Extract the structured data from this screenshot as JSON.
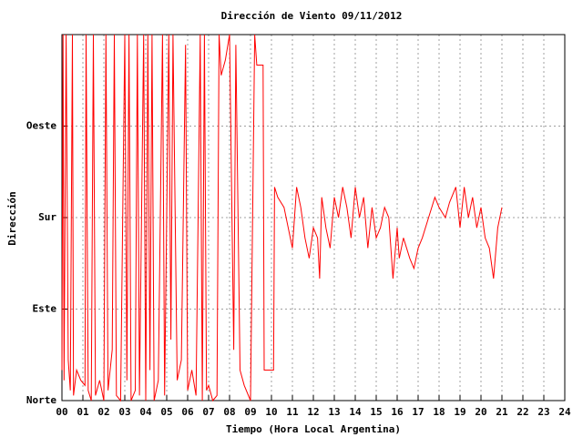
{
  "chart_data": {
    "type": "line",
    "title": "Dirección de Viento 09/11/2012",
    "x_label": "Tiempo (Hora Local Argentina)",
    "y_label": "Dirección",
    "xlim": [
      0,
      24
    ],
    "xticks": [
      {
        "value": 0,
        "label": "00"
      },
      {
        "value": 1,
        "label": "01"
      },
      {
        "value": 2,
        "label": "02"
      },
      {
        "value": 3,
        "label": "03"
      },
      {
        "value": 4,
        "label": "04"
      },
      {
        "value": 5,
        "label": "05"
      },
      {
        "value": 6,
        "label": "06"
      },
      {
        "value": 7,
        "label": "07"
      },
      {
        "value": 8,
        "label": "08"
      },
      {
        "value": 9,
        "label": "09"
      },
      10,
      11,
      12,
      13,
      14,
      15,
      16,
      17,
      18,
      19,
      20,
      21,
      22,
      23,
      24
    ],
    "ylim": [
      0,
      360
    ],
    "yticks": [
      {
        "value": 0,
        "label": "Norte"
      },
      {
        "value": 90,
        "label": "Este"
      },
      {
        "value": 180,
        "label": "Sur"
      },
      {
        "value": 270,
        "label": "Oeste"
      }
    ],
    "grid": true,
    "series": [
      {
        "name": "Dirección",
        "color": "#ff0000",
        "x": [
          0.0,
          0.05,
          0.1,
          0.2,
          0.3,
          0.4,
          0.5,
          0.55,
          0.7,
          0.9,
          1.1,
          1.15,
          1.25,
          1.4,
          1.5,
          1.6,
          1.8,
          2.0,
          2.1,
          2.2,
          2.4,
          2.5,
          2.6,
          2.8,
          3.0,
          3.1,
          3.2,
          3.3,
          3.5,
          3.6,
          3.7,
          3.9,
          4.0,
          4.1,
          4.2,
          4.3,
          4.4,
          4.6,
          4.8,
          4.9,
          5.1,
          5.2,
          5.3,
          5.5,
          5.7,
          5.9,
          6.0,
          6.2,
          6.4,
          6.6,
          6.7,
          6.8,
          6.9,
          7.0,
          7.2,
          7.4,
          7.5,
          7.6,
          7.8,
          8.0,
          8.2,
          8.3,
          8.5,
          8.7,
          9.0,
          9.2,
          9.3,
          9.6,
          9.65,
          10.1,
          10.15,
          10.3,
          10.6,
          10.8,
          11.0,
          11.2,
          11.4,
          11.6,
          11.8,
          12.0,
          12.2,
          12.3,
          12.4,
          12.6,
          12.8,
          13.0,
          13.2,
          13.4,
          13.6,
          13.8,
          14.0,
          14.2,
          14.4,
          14.6,
          14.8,
          15.0,
          15.2,
          15.4,
          15.6,
          15.8,
          16.0,
          16.1,
          16.3,
          16.6,
          16.8,
          17.0,
          17.2,
          17.5,
          17.8,
          18.0,
          18.3,
          18.5,
          18.8,
          19.0,
          19.2,
          19.4,
          19.6,
          19.8,
          20.0,
          20.2,
          20.4,
          20.6,
          20.8,
          21.0
        ],
        "values": [
          30,
          360,
          20,
          360,
          40,
          10,
          360,
          5,
          30,
          20,
          15,
          360,
          10,
          0,
          360,
          5,
          20,
          0,
          360,
          10,
          50,
          360,
          5,
          0,
          360,
          20,
          360,
          0,
          10,
          360,
          5,
          360,
          0,
          360,
          30,
          360,
          0,
          20,
          360,
          5,
          360,
          60,
          360,
          20,
          40,
          350,
          10,
          30,
          5,
          360,
          0,
          360,
          10,
          15,
          0,
          5,
          360,
          320,
          335,
          360,
          50,
          350,
          30,
          15,
          0,
          360,
          330,
          330,
          30,
          30,
          210,
          200,
          190,
          170,
          150,
          210,
          190,
          160,
          140,
          170,
          160,
          120,
          200,
          170,
          150,
          200,
          180,
          210,
          190,
          160,
          210,
          180,
          200,
          150,
          190,
          160,
          170,
          190,
          180,
          120,
          170,
          140,
          160,
          140,
          130,
          150,
          160,
          180,
          200,
          190,
          180,
          195,
          210,
          170,
          210,
          180,
          200,
          170,
          190,
          160,
          150,
          120,
          170,
          190
        ]
      }
    ]
  }
}
